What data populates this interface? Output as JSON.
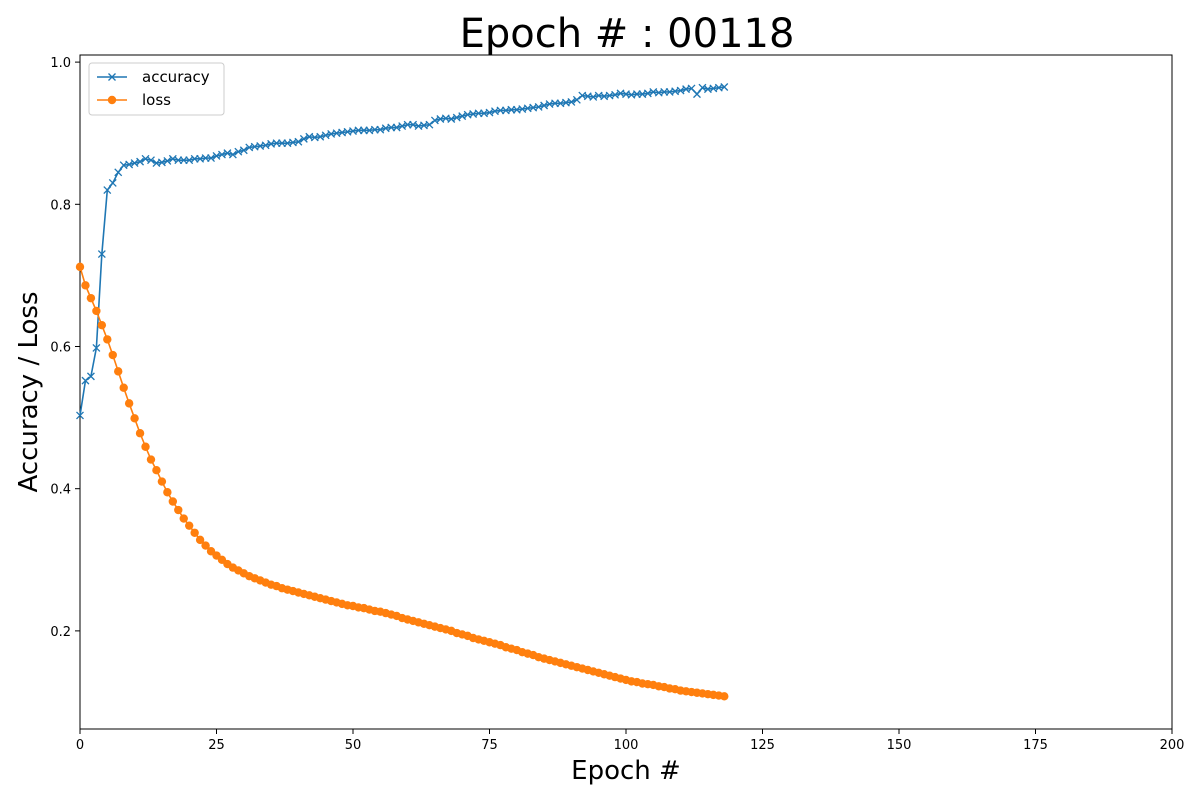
{
  "chart_data": {
    "type": "line",
    "title": "Epoch # : 00118",
    "xlabel": "Epoch #",
    "ylabel": "Accuracy / Loss",
    "xlim": [
      0,
      200
    ],
    "ylim": [
      0.062,
      1.01
    ],
    "xticks": [
      0,
      25,
      50,
      75,
      100,
      125,
      150,
      175,
      200
    ],
    "yticks": [
      0.2,
      0.4,
      0.6,
      0.8,
      1.0
    ],
    "xtick_labels": [
      "0",
      "25",
      "50",
      "75",
      "100",
      "125",
      "150",
      "175",
      "200"
    ],
    "ytick_labels": [
      "0.2",
      "0.4",
      "0.6",
      "0.8",
      "1.0"
    ],
    "grid": false,
    "legend_position": "top-left",
    "x_start": 0,
    "series": [
      {
        "name": "accuracy",
        "color": "#1f77b4",
        "marker": "x",
        "values": [
          0.503,
          0.552,
          0.558,
          0.598,
          0.73,
          0.82,
          0.83,
          0.845,
          0.855,
          0.856,
          0.858,
          0.86,
          0.864,
          0.862,
          0.858,
          0.859,
          0.861,
          0.864,
          0.862,
          0.862,
          0.862,
          0.864,
          0.864,
          0.865,
          0.865,
          0.868,
          0.87,
          0.872,
          0.87,
          0.874,
          0.876,
          0.88,
          0.881,
          0.882,
          0.883,
          0.885,
          0.886,
          0.886,
          0.886,
          0.887,
          0.888,
          0.892,
          0.895,
          0.894,
          0.895,
          0.897,
          0.899,
          0.9,
          0.901,
          0.902,
          0.903,
          0.904,
          0.904,
          0.904,
          0.905,
          0.905,
          0.907,
          0.908,
          0.908,
          0.91,
          0.912,
          0.912,
          0.91,
          0.911,
          0.912,
          0.918,
          0.92,
          0.921,
          0.92,
          0.922,
          0.924,
          0.926,
          0.927,
          0.928,
          0.928,
          0.929,
          0.931,
          0.932,
          0.932,
          0.933,
          0.933,
          0.934,
          0.935,
          0.936,
          0.937,
          0.939,
          0.941,
          0.942,
          0.942,
          0.943,
          0.944,
          0.947,
          0.953,
          0.952,
          0.951,
          0.953,
          0.952,
          0.953,
          0.954,
          0.956,
          0.955,
          0.954,
          0.955,
          0.955,
          0.956,
          0.958,
          0.957,
          0.958,
          0.958,
          0.959,
          0.96,
          0.962,
          0.963,
          0.955,
          0.964,
          0.962,
          0.963,
          0.964,
          0.965
        ]
      },
      {
        "name": "loss",
        "color": "#ff7f0e",
        "marker": "o",
        "values": [
          0.712,
          0.686,
          0.668,
          0.65,
          0.63,
          0.61,
          0.588,
          0.565,
          0.542,
          0.52,
          0.499,
          0.478,
          0.459,
          0.441,
          0.426,
          0.41,
          0.395,
          0.382,
          0.37,
          0.358,
          0.348,
          0.338,
          0.328,
          0.32,
          0.312,
          0.306,
          0.3,
          0.294,
          0.289,
          0.285,
          0.281,
          0.277,
          0.274,
          0.271,
          0.268,
          0.265,
          0.263,
          0.26,
          0.258,
          0.256,
          0.254,
          0.252,
          0.25,
          0.248,
          0.246,
          0.244,
          0.242,
          0.24,
          0.238,
          0.236,
          0.235,
          0.233,
          0.232,
          0.23,
          0.228,
          0.227,
          0.225,
          0.223,
          0.221,
          0.218,
          0.216,
          0.214,
          0.212,
          0.21,
          0.208,
          0.206,
          0.204,
          0.202,
          0.2,
          0.197,
          0.195,
          0.193,
          0.19,
          0.188,
          0.186,
          0.184,
          0.182,
          0.18,
          0.177,
          0.175,
          0.173,
          0.17,
          0.168,
          0.166,
          0.163,
          0.161,
          0.159,
          0.157,
          0.155,
          0.153,
          0.151,
          0.149,
          0.147,
          0.145,
          0.143,
          0.141,
          0.139,
          0.137,
          0.135,
          0.133,
          0.131,
          0.129,
          0.128,
          0.126,
          0.125,
          0.124,
          0.122,
          0.121,
          0.119,
          0.118,
          0.116,
          0.115,
          0.114,
          0.113,
          0.112,
          0.111,
          0.11,
          0.109,
          0.108
        ]
      }
    ]
  }
}
